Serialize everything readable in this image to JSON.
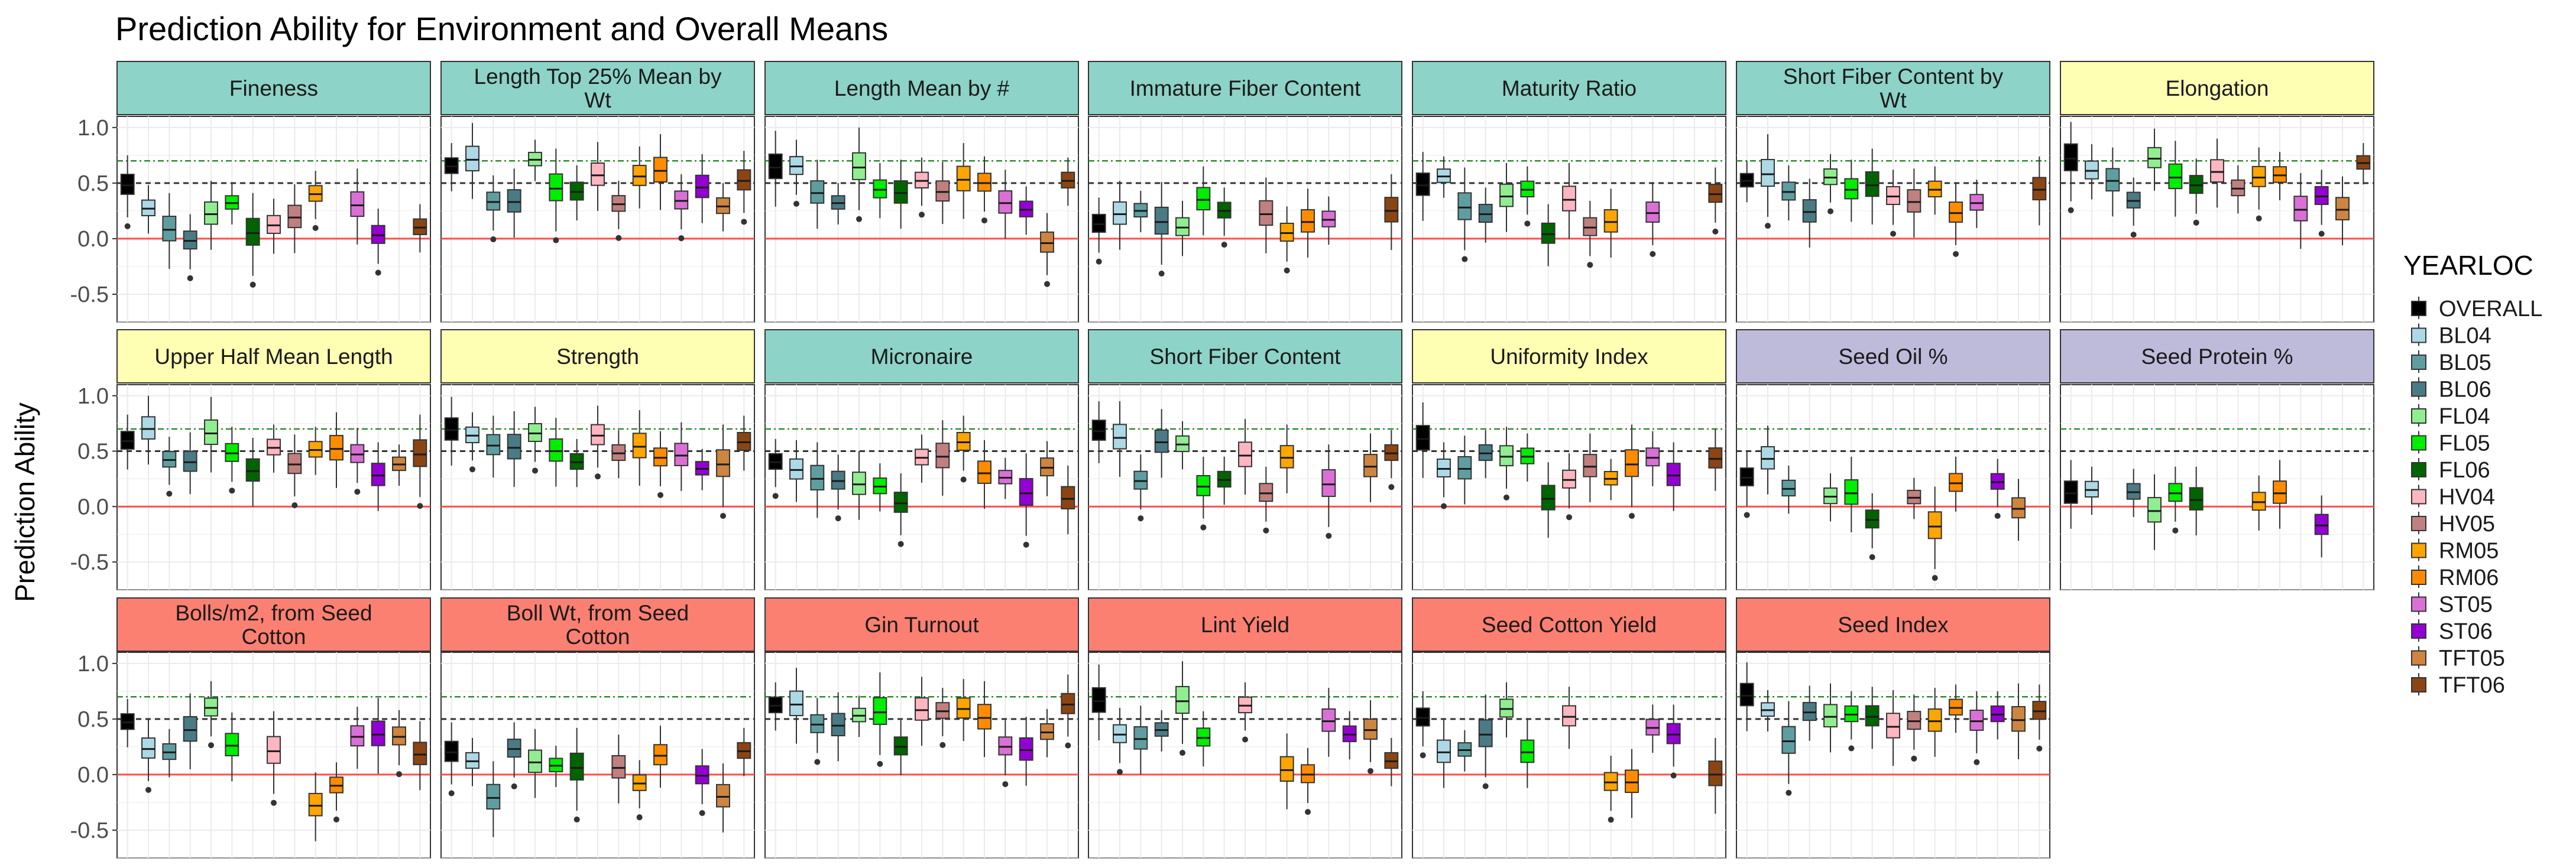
{
  "chart_data": {
    "type": "boxplot",
    "title": "Prediction Ability for Environment and Overall Means",
    "xlabel": "",
    "ylabel": "Prediction Ability",
    "ylim": [
      -0.75,
      1.1
    ],
    "yticks": [
      1.0,
      0.5,
      0.0,
      -0.5
    ],
    "ytick_labels": [
      "1.0",
      "0.5",
      "0.0",
      "-0.5"
    ],
    "reference_lines": {
      "zero": 0.0,
      "dashed": 0.5,
      "dotdash": 0.7
    },
    "legend": {
      "title": "YEARLOC",
      "position": "right",
      "entries": [
        "OVERALL",
        "BL04",
        "BL05",
        "BL06",
        "FL04",
        "FL05",
        "FL06",
        "HV04",
        "HV05",
        "RM05",
        "RM06",
        "ST05",
        "ST06",
        "TFT05",
        "TFT06"
      ]
    },
    "group_colors": {
      "OVERALL": "#000000",
      "BL04": "#ADD8E6",
      "BL05": "#5F9EA0",
      "BL06": "#4A7B85",
      "FL04": "#90EE90",
      "FL05": "#00EE00",
      "FL06": "#006400",
      "HV04": "#FFB6C1",
      "HV05": "#C08080",
      "RM05": "#FFA500",
      "RM06": "#FF8C00",
      "ST05": "#DA70D6",
      "ST06": "#9400D3",
      "TFT05": "#CD853F",
      "TFT06": "#8B4513"
    },
    "strip_colors": {
      "fiber": "#8DD3C7",
      "yellow": "#FFFFB3",
      "purple": "#BEBADA",
      "salmon": "#FB8072"
    },
    "panels": [
      {
        "title": "Fineness",
        "strip": "fiber",
        "medians": {
          "OVERALL": 0.48,
          "BL04": 0.27,
          "BL05": 0.08,
          "BL06": -0.02,
          "FL04": 0.22,
          "FL05": 0.32,
          "FL06": 0.05,
          "HV04": 0.12,
          "HV05": 0.19,
          "RM05": 0.4,
          "ST05": 0.3,
          "ST06": 0.03,
          "TFT06": 0.1
        }
      },
      {
        "title": "Length Top 25% Mean by Wt",
        "strip": "fiber",
        "medians": {
          "OVERALL": 0.65,
          "BL04": 0.71,
          "BL05": 0.33,
          "BL06": 0.33,
          "FL04": 0.71,
          "FL05": 0.45,
          "FL06": 0.42,
          "HV04": 0.57,
          "HV05": 0.31,
          "RM05": 0.56,
          "RM06": 0.61,
          "ST05": 0.34,
          "ST06": 0.46,
          "TFT05": 0.29,
          "TFT06": 0.52
        }
      },
      {
        "title": "Length Mean by #",
        "strip": "fiber",
        "medians": {
          "OVERALL": 0.64,
          "BL04": 0.65,
          "BL05": 0.41,
          "BL06": 0.32,
          "FL04": 0.64,
          "FL05": 0.44,
          "FL06": 0.41,
          "HV04": 0.52,
          "HV05": 0.42,
          "RM05": 0.53,
          "RM06": 0.5,
          "ST05": 0.32,
          "ST06": 0.26,
          "TFT05": -0.04,
          "TFT06": 0.52
        }
      },
      {
        "title": "Immature Fiber Content",
        "strip": "fiber",
        "medians": {
          "OVERALL": 0.13,
          "BL04": 0.22,
          "BL05": 0.25,
          "BL06": 0.15,
          "FL04": 0.1,
          "FL05": 0.35,
          "FL06": 0.25,
          "HV05": 0.22,
          "RM05": 0.05,
          "RM06": 0.15,
          "ST05": 0.17,
          "TFT06": 0.25
        }
      },
      {
        "title": "Maturity Ratio",
        "strip": "fiber",
        "medians": {
          "OVERALL": 0.48,
          "BL04": 0.56,
          "BL05": 0.28,
          "BL06": 0.22,
          "FL04": 0.38,
          "FL05": 0.44,
          "FL06": 0.04,
          "HV04": 0.35,
          "HV05": 0.1,
          "RM05": 0.15,
          "ST05": 0.23,
          "TFT06": 0.4
        }
      },
      {
        "title": "Short Fiber Content by Wt",
        "strip": "fiber",
        "medians": {
          "OVERALL": 0.52,
          "BL04": 0.58,
          "BL05": 0.42,
          "BL06": 0.24,
          "FL04": 0.55,
          "FL05": 0.44,
          "FL06": 0.48,
          "HV04": 0.38,
          "HV05": 0.33,
          "RM05": 0.44,
          "RM06": 0.23,
          "ST05": 0.32,
          "TFT06": 0.44
        }
      },
      {
        "title": "Elongation",
        "strip": "yellow",
        "medians": {
          "OVERALL": 0.72,
          "BL04": 0.61,
          "BL05": 0.52,
          "BL06": 0.34,
          "FL04": 0.72,
          "FL05": 0.55,
          "FL06": 0.48,
          "HV04": 0.6,
          "HV05": 0.45,
          "RM05": 0.55,
          "RM06": 0.57,
          "ST05": 0.26,
          "ST06": 0.38,
          "TFT05": 0.26,
          "TFT06": 0.68
        }
      },
      {
        "title": "Upper Half Mean Length",
        "strip": "yellow",
        "medians": {
          "OVERALL": 0.59,
          "BL04": 0.7,
          "BL05": 0.42,
          "BL06": 0.4,
          "FL04": 0.66,
          "FL05": 0.48,
          "FL06": 0.32,
          "HV04": 0.53,
          "HV05": 0.38,
          "RM05": 0.51,
          "RM06": 0.52,
          "ST05": 0.47,
          "ST06": 0.28,
          "TFT05": 0.38,
          "TFT06": 0.47
        }
      },
      {
        "title": "Strength",
        "strip": "yellow",
        "medians": {
          "OVERALL": 0.69,
          "BL04": 0.64,
          "BL05": 0.55,
          "BL06": 0.53,
          "FL04": 0.66,
          "FL05": 0.5,
          "FL06": 0.4,
          "HV04": 0.64,
          "HV05": 0.48,
          "RM05": 0.54,
          "RM06": 0.44,
          "ST05": 0.46,
          "ST06": 0.34,
          "TFT05": 0.38,
          "TFT06": 0.58
        }
      },
      {
        "title": "Micronaire",
        "strip": "fiber",
        "medians": {
          "OVERALL": 0.4,
          "BL04": 0.33,
          "BL05": 0.25,
          "BL06": 0.23,
          "FL04": 0.2,
          "FL05": 0.18,
          "FL06": 0.03,
          "HV04": 0.44,
          "HV05": 0.45,
          "RM05": 0.58,
          "RM06": 0.3,
          "ST05": 0.26,
          "ST06": 0.12,
          "TFT05": 0.35,
          "TFT06": 0.07
        }
      },
      {
        "title": "Short Fiber Content",
        "strip": "fiber",
        "medians": {
          "OVERALL": 0.68,
          "BL04": 0.62,
          "BL05": 0.23,
          "BL06": 0.58,
          "FL04": 0.56,
          "FL05": 0.18,
          "FL06": 0.24,
          "HV04": 0.46,
          "HV05": 0.12,
          "RM05": 0.44,
          "ST05": 0.2,
          "TFT05": 0.36,
          "TFT06": 0.48
        }
      },
      {
        "title": "Uniformity Index",
        "strip": "yellow",
        "medians": {
          "OVERALL": 0.61,
          "BL04": 0.34,
          "BL05": 0.34,
          "BL06": 0.48,
          "FL04": 0.45,
          "FL05": 0.45,
          "FL06": 0.07,
          "HV04": 0.24,
          "HV05": 0.36,
          "RM05": 0.25,
          "RM06": 0.38,
          "ST05": 0.44,
          "ST06": 0.28,
          "TFT06": 0.43
        }
      },
      {
        "title": "Seed Oil %",
        "strip": "purple",
        "medians": {
          "OVERALL": 0.26,
          "BL04": 0.43,
          "BL05": 0.16,
          "FL04": 0.09,
          "FL05": 0.12,
          "FL06": -0.12,
          "HV05": 0.08,
          "RM05": -0.18,
          "RM06": 0.21,
          "ST06": 0.22,
          "TFT05": -0.02
        }
      },
      {
        "title": "Seed Protein %",
        "strip": "purple",
        "medians": {
          "OVERALL": 0.12,
          "BL04": 0.15,
          "BL06": 0.13,
          "FL04": -0.04,
          "FL05": 0.12,
          "FL06": 0.06,
          "RM05": 0.04,
          "RM06": 0.12,
          "ST06": -0.17
        }
      },
      {
        "title": "Bolls/m2, from Seed Cotton",
        "strip": "salmon",
        "medians": {
          "OVERALL": 0.47,
          "BL04": 0.23,
          "BL05": 0.2,
          "BL06": 0.4,
          "FL04": 0.6,
          "FL05": 0.26,
          "HV04": 0.21,
          "RM05": -0.28,
          "RM06": -0.1,
          "ST05": 0.34,
          "ST06": 0.36,
          "TFT05": 0.34,
          "TFT06": 0.18
        }
      },
      {
        "title": "Boll Wt, from Seed Cotton",
        "strip": "salmon",
        "medians": {
          "OVERALL": 0.2,
          "BL04": 0.12,
          "BL05": -0.21,
          "BL06": 0.23,
          "FL04": 0.11,
          "FL05": 0.08,
          "FL06": 0.06,
          "HV05": 0.06,
          "RM05": -0.08,
          "RM06": 0.17,
          "ST06": -0.01,
          "TFT05": -0.2,
          "TFT06": 0.21
        }
      },
      {
        "title": "Gin Turnout",
        "strip": "salmon",
        "medians": {
          "OVERALL": 0.62,
          "BL04": 0.63,
          "BL05": 0.45,
          "BL06": 0.44,
          "FL04": 0.53,
          "FL05": 0.56,
          "FL06": 0.25,
          "HV04": 0.58,
          "HV05": 0.57,
          "RM05": 0.59,
          "RM06": 0.51,
          "ST05": 0.25,
          "ST06": 0.22,
          "TFT05": 0.38,
          "TFT06": 0.63
        }
      },
      {
        "title": "Lint Yield",
        "strip": "salmon",
        "medians": {
          "OVERALL": 0.66,
          "BL04": 0.36,
          "BL05": 0.32,
          "BL06": 0.4,
          "FL04": 0.66,
          "FL05": 0.33,
          "HV04": 0.62,
          "RM05": 0.04,
          "RM06": 0.0,
          "ST05": 0.48,
          "ST06": 0.36,
          "TFT05": 0.4,
          "TFT06": 0.12
        }
      },
      {
        "title": "Seed Cotton Yield",
        "strip": "salmon",
        "medians": {
          "OVERALL": 0.51,
          "BL04": 0.2,
          "BL05": 0.22,
          "BL06": 0.36,
          "FL04": 0.59,
          "FL05": 0.2,
          "HV04": 0.52,
          "RM05": -0.07,
          "RM06": -0.07,
          "ST05": 0.42,
          "ST06": 0.36,
          "TFT06": 0.0
        }
      },
      {
        "title": "Seed Index",
        "strip": "salmon",
        "medians": {
          "OVERALL": 0.71,
          "BL04": 0.58,
          "BL05": 0.3,
          "BL06": 0.56,
          "FL04": 0.52,
          "FL05": 0.54,
          "FL06": 0.52,
          "HV04": 0.43,
          "HV05": 0.48,
          "RM05": 0.48,
          "RM06": 0.6,
          "ST05": 0.48,
          "ST06": 0.54,
          "TFT05": 0.49,
          "TFT06": 0.57
        }
      }
    ]
  }
}
